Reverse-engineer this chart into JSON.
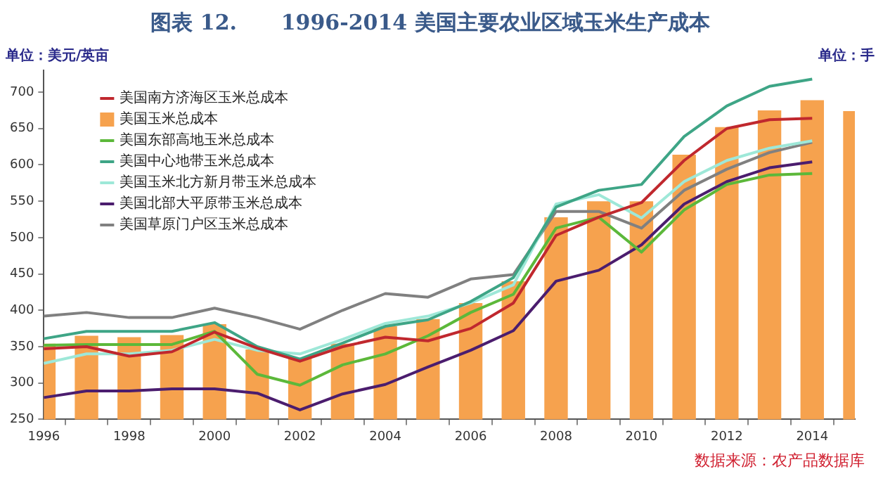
{
  "chart_data": {
    "type": "bar",
    "title": "图表 12.      1996-2014 美国主要农业区域玉米生产成本",
    "ylabel": "单位：美元/英亩",
    "annotations": [
      "单位：手",
      "数据来源：农产品数据库"
    ],
    "categories": [
      "1996",
      null,
      "1998",
      null,
      "2000",
      null,
      "2002",
      null,
      "2004",
      null,
      "2006",
      null,
      "2008",
      null,
      "2010",
      null,
      "2012",
      null,
      "2014",
      null
    ],
    "series": [
      {
        "name": "美国南方济海区玉米总成本",
        "type": "line",
        "color": "#c0282e",
        "values": [
          347,
          350,
          337,
          343,
          370,
          348,
          330,
          350,
          363,
          358,
          375,
          410,
          503,
          528,
          548,
          606,
          650,
          662,
          664,
          null
        ]
      },
      {
        "name": "美国玉米总成本",
        "color": "#f6a24e",
        "values": [
          354,
          365,
          363,
          366,
          381,
          346,
          334,
          354,
          378,
          388,
          410,
          440,
          528,
          550,
          550,
          614,
          652,
          675,
          689,
          674
        ]
      },
      {
        "name": "美国东部高地玉米总成本",
        "type": "line",
        "color": "#5cb83a",
        "values": [
          352,
          353,
          353,
          353,
          371,
          312,
          297,
          325,
          340,
          365,
          397,
          422,
          513,
          528,
          480,
          538,
          573,
          586,
          588,
          null
        ]
      },
      {
        "name": "美国中心地带玉米总成本",
        "type": "line",
        "color": "#3ea586",
        "values": [
          361,
          371,
          371,
          371,
          383,
          350,
          333,
          355,
          378,
          387,
          412,
          445,
          542,
          565,
          573,
          639,
          681,
          708,
          718,
          null
        ]
      },
      {
        "name": "美国玉米北方新月带玉米总成本",
        "type": "line",
        "color": "#9ee8d8",
        "values": [
          327,
          340,
          340,
          345,
          360,
          345,
          340,
          360,
          382,
          392,
          410,
          435,
          546,
          559,
          527,
          577,
          606,
          623,
          633,
          null
        ]
      },
      {
        "name": "美国北部大平原带玉米总成本",
        "type": "line",
        "color": "#4b1d6e",
        "values": [
          280,
          289,
          289,
          292,
          292,
          286,
          263,
          285,
          298,
          322,
          345,
          372,
          440,
          455,
          490,
          546,
          577,
          596,
          604,
          null
        ]
      },
      {
        "name": "美国草原门户区玉米总成本",
        "type": "line",
        "color": "#808080",
        "values": [
          392,
          397,
          390,
          390,
          403,
          390,
          374,
          400,
          423,
          418,
          443,
          449,
          536,
          536,
          513,
          565,
          594,
          617,
          631,
          null
        ]
      }
    ],
    "ylim": [
      250,
      730
    ],
    "yticks": [
      250,
      300,
      350,
      400,
      450,
      500,
      550,
      600,
      650,
      700
    ],
    "grid": false,
    "legend": "top left",
    "marker": "none",
    "line_style": "solid"
  }
}
